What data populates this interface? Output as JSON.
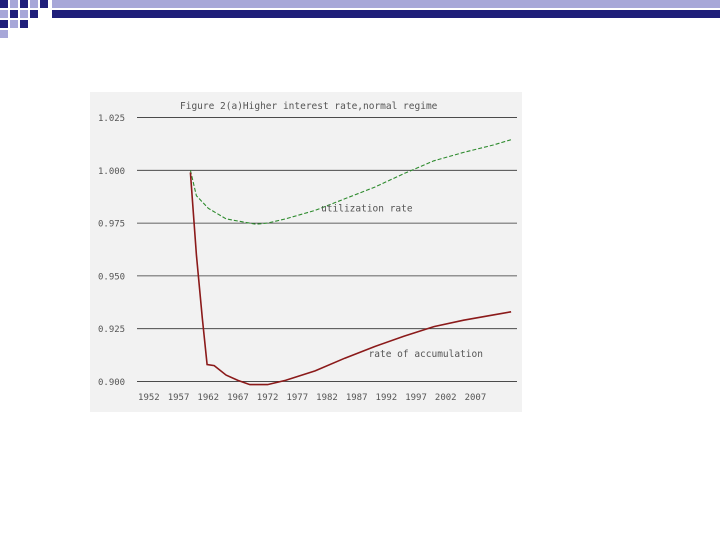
{
  "colors": {
    "deco_dark": "#1f1f7a",
    "deco_light": "#a7a7d8",
    "panel_bg": "#f2f2f2",
    "grid": "#333333",
    "utilization": "#2e8b2e",
    "accumulation": "#8b1a1a",
    "text": "#555555"
  },
  "chart_data": {
    "type": "line",
    "title": "Figure 2(a)Higher interest rate,normal regime",
    "xlabel": "",
    "ylabel": "",
    "xlim": [
      1950,
      2014
    ],
    "ylim": [
      0.895,
      1.03
    ],
    "x_ticks": [
      "1952",
      "1957",
      "1962",
      "1967",
      "1972",
      "1977",
      "1982",
      "1987",
      "1992",
      "1997",
      "2002",
      "2007"
    ],
    "y_ticks": [
      "1.025",
      "1.000",
      "0.975",
      "0.950",
      "0.925",
      "0.900"
    ],
    "grid": true,
    "series": [
      {
        "name": "utilization rate",
        "color": "#2e8b2e",
        "dash": "dashed",
        "x": [
          1959,
          1960,
          1962,
          1965,
          1968,
          1970,
          1972,
          1975,
          1980,
          1985,
          1990,
          1995,
          2000,
          2005,
          2010,
          2013
        ],
        "y": [
          1.0,
          0.988,
          0.982,
          0.977,
          0.9755,
          0.9745,
          0.975,
          0.977,
          0.981,
          0.9865,
          0.992,
          0.9985,
          1.0045,
          1.0085,
          1.012,
          1.0145
        ]
      },
      {
        "name": "rate of accumulation",
        "color": "#8b1a1a",
        "dash": "solid",
        "x": [
          1959,
          1960,
          1961,
          1961.8,
          1963,
          1965,
          1967,
          1969,
          1972,
          1975,
          1980,
          1985,
          1990,
          1995,
          2000,
          2005,
          2010,
          2013
        ],
        "y": [
          0.999,
          0.96,
          0.93,
          0.908,
          0.9075,
          0.903,
          0.9005,
          0.8985,
          0.8985,
          0.9005,
          0.905,
          0.911,
          0.9165,
          0.9215,
          0.926,
          0.929,
          0.9315,
          0.933
        ]
      }
    ],
    "annotations": [
      {
        "text": "utilization rate",
        "x": 1981,
        "y": 0.9805
      },
      {
        "text": "rate of accumulation",
        "x": 1989,
        "y": 0.9115
      }
    ],
    "legend": "none"
  }
}
